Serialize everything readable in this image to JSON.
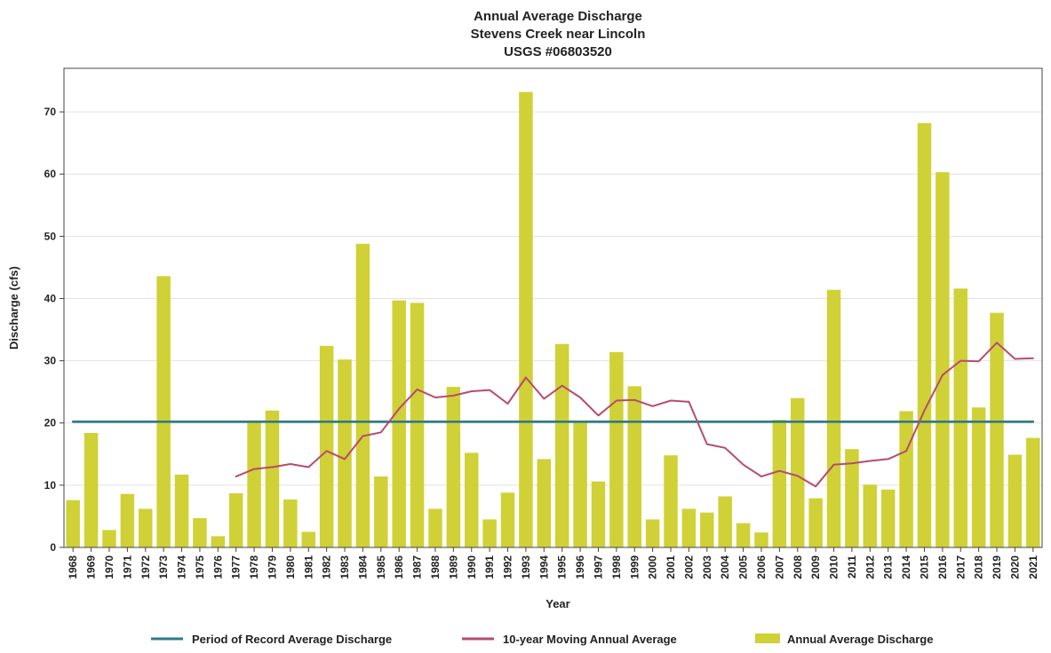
{
  "chart_data": {
    "type": "bar",
    "title": [
      "Annual Average Discharge",
      "Stevens Creek near Lincoln",
      "USGS #06803520"
    ],
    "xlabel": "Year",
    "ylabel": "Discharge (cfs)",
    "ylim": [
      0,
      77
    ],
    "yticks": [
      0,
      10,
      20,
      30,
      40,
      50,
      60,
      70
    ],
    "grid": "horizontal",
    "legend_position": "bottom",
    "categories": [
      "1968",
      "1969",
      "1970",
      "1971",
      "1972",
      "1973",
      "1974",
      "1975",
      "1976",
      "1977",
      "1978",
      "1979",
      "1980",
      "1981",
      "1982",
      "1983",
      "1984",
      "1985",
      "1986",
      "1987",
      "1988",
      "1989",
      "1990",
      "1991",
      "1992",
      "1993",
      "1994",
      "1995",
      "1996",
      "1997",
      "1998",
      "1999",
      "2000",
      "2001",
      "2002",
      "2003",
      "2004",
      "2005",
      "2006",
      "2007",
      "2008",
      "2009",
      "2010",
      "2011",
      "2012",
      "2013",
      "2014",
      "2015",
      "2016",
      "2017",
      "2018",
      "2019",
      "2020",
      "2021"
    ],
    "series": [
      {
        "name": "Annual Average Discharge",
        "type": "bar",
        "color": "#cfd136",
        "values": [
          7.6,
          18.4,
          2.8,
          8.6,
          6.2,
          43.6,
          11.7,
          4.7,
          1.8,
          8.7,
          20.4,
          22.0,
          7.7,
          2.5,
          32.4,
          30.2,
          48.8,
          11.4,
          39.7,
          39.3,
          6.2,
          25.8,
          15.2,
          4.5,
          8.8,
          73.2,
          14.2,
          32.7,
          20.3,
          10.6,
          31.4,
          25.9,
          4.5,
          14.8,
          6.2,
          5.6,
          8.2,
          3.9,
          2.4,
          20.5,
          24.0,
          7.9,
          41.4,
          15.8,
          10.1,
          9.3,
          21.9,
          68.2,
          60.3,
          41.6,
          22.5,
          37.7,
          14.9,
          17.6
        ]
      },
      {
        "name": "10-year Moving Annual Average",
        "type": "line",
        "color": "#b84a6e",
        "values": [
          null,
          null,
          null,
          null,
          null,
          null,
          null,
          null,
          null,
          11.4,
          12.6,
          12.9,
          13.4,
          12.9,
          15.5,
          14.2,
          17.9,
          18.5,
          22.3,
          25.4,
          24.1,
          24.4,
          25.1,
          25.3,
          23.1,
          27.3,
          23.9,
          26.0,
          24.1,
          21.2,
          23.6,
          23.7,
          22.7,
          23.6,
          23.4,
          16.6,
          16.0,
          13.3,
          11.4,
          12.3,
          11.5,
          9.8,
          13.3,
          13.5,
          13.9,
          14.2,
          15.5,
          22.0,
          27.7,
          30.0,
          29.9,
          32.9,
          30.3,
          30.4
        ]
      },
      {
        "name": "Period of Record Average Discharge",
        "type": "line",
        "color": "#2e7b86",
        "values": [
          20.2,
          20.2,
          20.2,
          20.2,
          20.2,
          20.2,
          20.2,
          20.2,
          20.2,
          20.2,
          20.2,
          20.2,
          20.2,
          20.2,
          20.2,
          20.2,
          20.2,
          20.2,
          20.2,
          20.2,
          20.2,
          20.2,
          20.2,
          20.2,
          20.2,
          20.2,
          20.2,
          20.2,
          20.2,
          20.2,
          20.2,
          20.2,
          20.2,
          20.2,
          20.2,
          20.2,
          20.2,
          20.2,
          20.2,
          20.2,
          20.2,
          20.2,
          20.2,
          20.2,
          20.2,
          20.2,
          20.2,
          20.2,
          20.2,
          20.2,
          20.2,
          20.2,
          20.2,
          20.2
        ]
      }
    ],
    "legend": [
      {
        "label": "Period of Record Average Discharge",
        "color": "#2e7b86",
        "symbol": "line"
      },
      {
        "label": "10-year Moving Annual Average",
        "color": "#b84a6e",
        "symbol": "line"
      },
      {
        "label": "Annual Average Discharge",
        "color": "#cfd136",
        "symbol": "bar"
      }
    ]
  }
}
